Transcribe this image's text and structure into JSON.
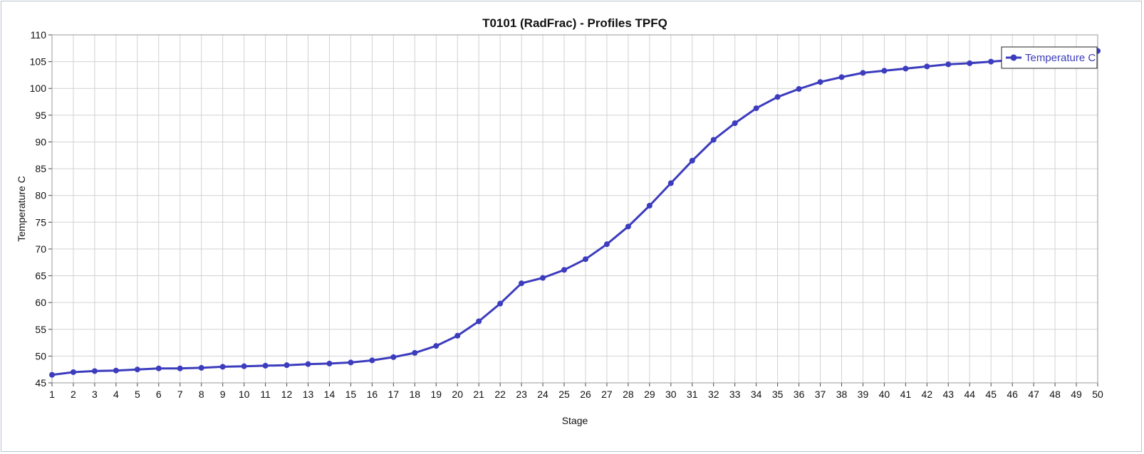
{
  "chart_data": {
    "type": "line",
    "title": "T0101 (RadFrac) - Profiles TPFQ",
    "xlabel": "Stage",
    "ylabel": "Temperature C",
    "xlim": [
      1,
      50
    ],
    "ylim": [
      45,
      110
    ],
    "y_ticks": [
      45,
      50,
      55,
      60,
      65,
      70,
      75,
      80,
      85,
      90,
      95,
      100,
      105,
      110
    ],
    "grid": true,
    "legend": {
      "position": "top-right"
    },
    "x": [
      1,
      2,
      3,
      4,
      5,
      6,
      7,
      8,
      9,
      10,
      11,
      12,
      13,
      14,
      15,
      16,
      17,
      18,
      19,
      20,
      21,
      22,
      23,
      24,
      25,
      26,
      27,
      28,
      29,
      30,
      31,
      32,
      33,
      34,
      35,
      36,
      37,
      38,
      39,
      40,
      41,
      42,
      43,
      44,
      45,
      46,
      47,
      48,
      49,
      50
    ],
    "series": [
      {
        "name": "Temperature C",
        "color": "#3c3cbe",
        "values": [
          46.5,
          47.0,
          47.2,
          47.3,
          47.5,
          47.7,
          47.7,
          47.8,
          48.0,
          48.1,
          48.2,
          48.3,
          48.5,
          48.6,
          48.8,
          49.2,
          49.8,
          50.6,
          51.9,
          53.8,
          56.5,
          59.8,
          63.6,
          64.6,
          66.1,
          68.1,
          70.9,
          74.2,
          78.1,
          82.3,
          86.5,
          90.4,
          93.5,
          96.3,
          98.4,
          99.9,
          101.2,
          102.1,
          102.9,
          103.3,
          103.7,
          104.1,
          104.5,
          104.7,
          105.0,
          105.3,
          105.6,
          105.9,
          106.3,
          107.0
        ]
      }
    ]
  }
}
